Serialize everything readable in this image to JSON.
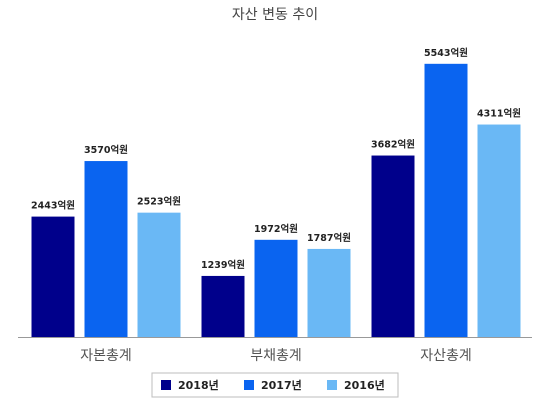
{
  "chart_data": {
    "type": "bar",
    "title": "자산 변동 추이",
    "categories": [
      "자본총계",
      "부채총계",
      "자산총계"
    ],
    "unit_suffix": "억원",
    "series": [
      {
        "name": "2018년",
        "color": "#00008b",
        "values": [
          2443,
          1239,
          3682
        ]
      },
      {
        "name": "2017년",
        "color": "#0a64f0",
        "values": [
          3570,
          1972,
          5543
        ]
      },
      {
        "name": "2016년",
        "color": "#6ab8f5",
        "values": [
          2523,
          1787,
          4311
        ]
      }
    ],
    "ylim": [
      0,
      6290
    ],
    "grid": false,
    "legend_position": "bottom-center"
  }
}
